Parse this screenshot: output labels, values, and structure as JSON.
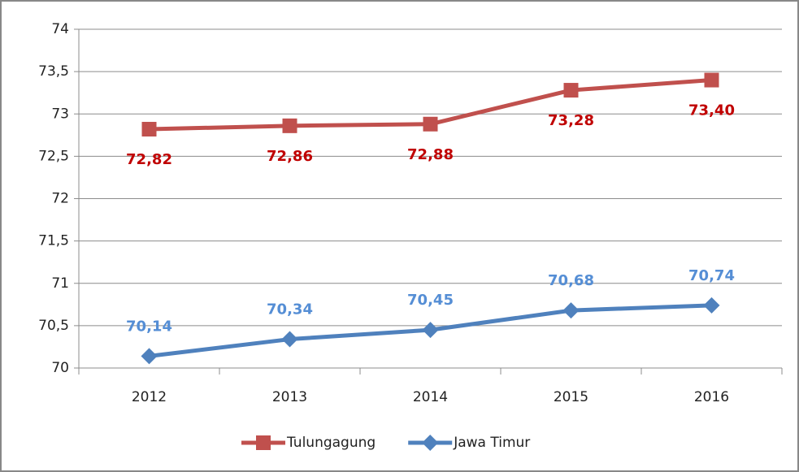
{
  "chart_data": {
    "type": "line",
    "categories": [
      "2012",
      "2013",
      "2014",
      "2015",
      "2016"
    ],
    "series": [
      {
        "name": "Tulungagung",
        "color": "#c0504d",
        "label_color": "#c00000",
        "marker": "square",
        "values": [
          72.82,
          72.86,
          72.88,
          73.28,
          73.4
        ],
        "value_labels": [
          "72,82",
          "72,86",
          "72,88",
          "73,28",
          "73,40"
        ]
      },
      {
        "name": "Jawa Timur",
        "color": "#4f81bd",
        "label_color": "#558ed5",
        "marker": "diamond",
        "values": [
          70.14,
          70.34,
          70.45,
          70.68,
          70.74
        ],
        "value_labels": [
          "70,14",
          "70,34",
          "70,45",
          "70,68",
          "70,74"
        ]
      }
    ],
    "ylim": [
      70,
      74
    ],
    "yticks": [
      70,
      {
        "value": 70.5,
        "label": "70,5"
      },
      71,
      {
        "value": 71.5,
        "label": "71,5"
      },
      72,
      {
        "value": 72.5,
        "label": "72,5"
      },
      73,
      {
        "value": 73.5,
        "label": "73,5"
      },
      74
    ],
    "grid": true,
    "legend": "bottom"
  }
}
